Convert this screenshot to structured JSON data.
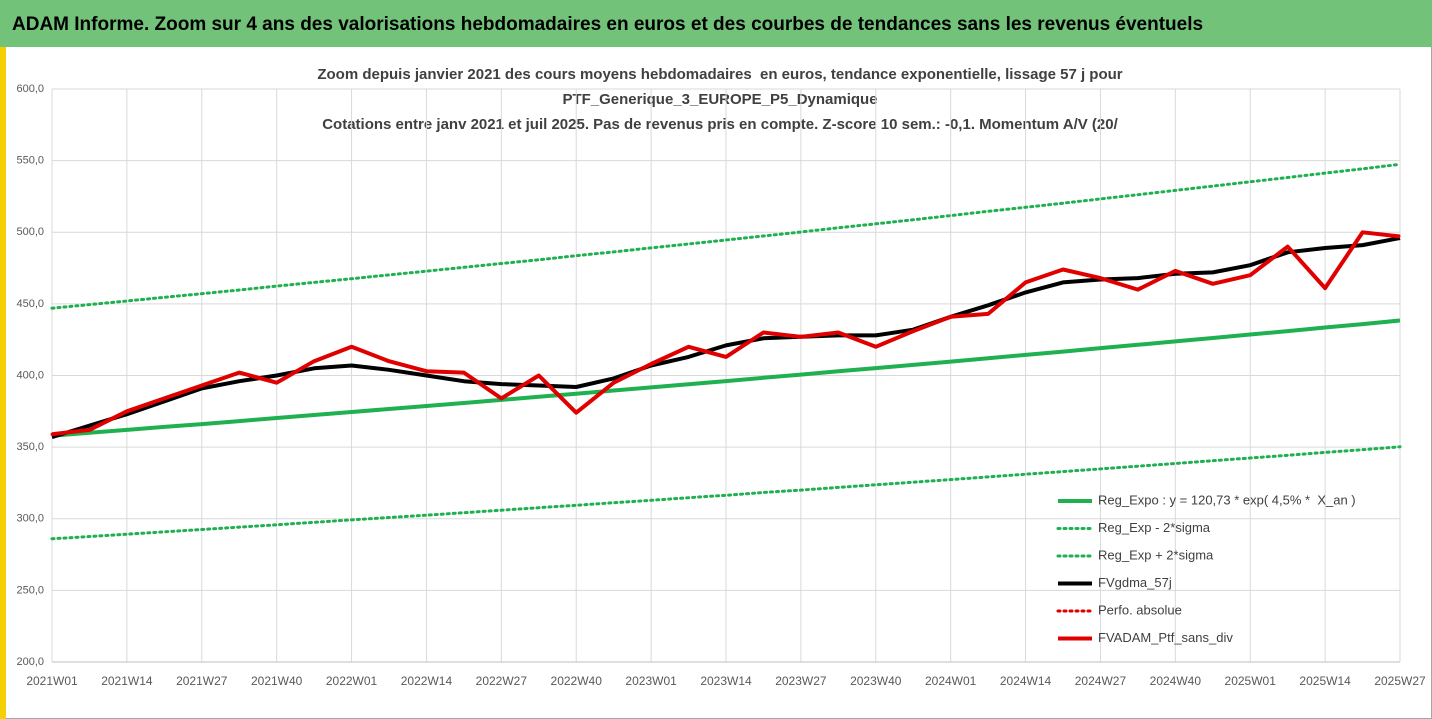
{
  "header": {
    "title": "ADAM Informe. Zoom sur 4 ans des valorisations hebdomadaires en euros et des courbes de tendances sans les revenus éventuels"
  },
  "chart_data": {
    "type": "line",
    "title": [
      "Zoom depuis janvier 2021 des cours moyens hebdomadaires  en euros, tendance exponentielle, lissage 57 j pour",
      "PTF_Generique_3_EUROPE_P5_Dynamique",
      "Cotations entre janv 2021 et juil 2025. Pas de revenus pris en compte. Z-score 10 sem.: -0,1. Momentum A/V (20/"
    ],
    "categories": [
      "2021W01",
      null,
      "2021W14",
      null,
      "2021W27",
      null,
      "2021W40",
      null,
      "2022W01",
      null,
      "2022W14",
      null,
      "2022W27",
      null,
      "2022W40",
      null,
      "2023W01",
      null,
      "2023W14",
      null,
      "2023W27",
      null,
      "2023W40",
      null,
      "2024W01",
      null,
      "2024W14",
      null,
      "2024W27",
      null,
      "2024W40",
      null,
      "2025W01",
      null,
      "2025W14",
      null,
      "2025W27"
    ],
    "ylim": [
      200,
      600
    ],
    "yticks": [
      {
        "value": 200,
        "label": "200,0"
      },
      {
        "value": 250,
        "label": "250,0"
      },
      {
        "value": 300,
        "label": "300,0"
      },
      {
        "value": 350,
        "label": "350,0"
      },
      {
        "value": 400,
        "label": "400,0"
      },
      {
        "value": 450,
        "label": "450,0"
      },
      {
        "value": 500,
        "label": "500,0"
      },
      {
        "value": 550,
        "label": "550,0"
      },
      {
        "value": 600,
        "label": "600,0"
      }
    ],
    "grid": true,
    "legend": "bottom-right",
    "series": [
      {
        "name": "Reg_Expo : y = 120,73 * exp( 4,5% *  X_an )",
        "color": "#1fb050",
        "style": "solid",
        "values": [
          358,
          360.0,
          362.0,
          364.1,
          366.1,
          368.2,
          370.3,
          372.4,
          374.5,
          376.6,
          378.7,
          380.8,
          383.0,
          385.1,
          387.3,
          389.5,
          391.7,
          393.9,
          396.1,
          398.4,
          400.6,
          402.9,
          405.2,
          407.4,
          409.7,
          412.1,
          414.4,
          416.7,
          419.1,
          421.4,
          423.8,
          426.2,
          428.6,
          431.0,
          433.5,
          435.9,
          438.4
        ]
      },
      {
        "name": "Reg_Exp - 2*sigma",
        "color": "#1fb050",
        "style": "dotted",
        "values": [
          286,
          287.6,
          289.2,
          290.9,
          292.5,
          294.2,
          295.8,
          297.5,
          299.2,
          300.9,
          302.5,
          304.2,
          306.0,
          307.7,
          309.4,
          311.2,
          312.9,
          314.7,
          316.4,
          318.3,
          320.0,
          321.9,
          323.7,
          325.5,
          327.3,
          329.2,
          331.1,
          332.9,
          334.8,
          336.7,
          338.6,
          340.5,
          342.4,
          344.3,
          346.3,
          348.2,
          350.2
        ]
      },
      {
        "name": "Reg_Exp + 2*sigma",
        "color": "#1fb050",
        "style": "dotted",
        "values": [
          447,
          449.5,
          452.0,
          454.6,
          457.1,
          459.7,
          462.4,
          465.0,
          467.6,
          470.2,
          472.8,
          475.5,
          478.2,
          480.8,
          483.6,
          486.3,
          489.1,
          491.8,
          494.6,
          497.4,
          500.2,
          503.1,
          505.9,
          508.7,
          511.6,
          514.6,
          517.4,
          520.3,
          523.3,
          526.2,
          529.2,
          532.2,
          535.2,
          538.2,
          541.3,
          544.3,
          547.4
        ]
      },
      {
        "name": "FVgdma_57j",
        "color": "#000000",
        "style": "solid",
        "values": [
          357,
          365,
          373,
          382,
          391,
          396,
          400,
          405,
          407,
          404,
          400,
          396,
          394,
          393,
          392,
          398,
          407,
          413,
          421,
          426,
          427,
          428,
          428,
          432,
          441,
          449,
          458,
          465,
          467,
          468,
          471,
          472,
          477,
          486,
          489,
          491,
          496
        ]
      },
      {
        "name": "Perfo. absolue",
        "color": "#e00000",
        "style": "dotted",
        "values": [
          359,
          362,
          375,
          384,
          393,
          402,
          395,
          410,
          420,
          410,
          403,
          402,
          384,
          400,
          374,
          395,
          408,
          420,
          413,
          430,
          427,
          430,
          420,
          431,
          441,
          443,
          465,
          474,
          468,
          460,
          473,
          464,
          470,
          490,
          461,
          500,
          497
        ]
      },
      {
        "name": "FVADAM_Ptf_sans_div",
        "color": "#e00000",
        "style": "solid",
        "values": [
          359,
          362,
          375,
          384,
          393,
          402,
          395,
          410,
          420,
          410,
          403,
          402,
          384,
          400,
          374,
          395,
          408,
          420,
          413,
          430,
          427,
          430,
          420,
          431,
          441,
          443,
          465,
          474,
          468,
          460,
          473,
          464,
          470,
          490,
          461,
          500,
          497
        ]
      }
    ]
  }
}
